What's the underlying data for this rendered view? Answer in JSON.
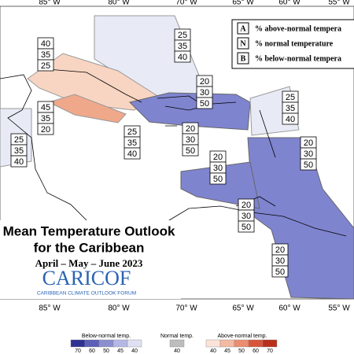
{
  "longitude_labels": [
    "85° W",
    "80° W",
    "70° W",
    "65° W",
    "60° W",
    "55° W"
  ],
  "legend": {
    "rows": [
      {
        "key": "A",
        "text": "% above-normal tempera"
      },
      {
        "key": "N",
        "text": "% normal temperature"
      },
      {
        "key": "B",
        "text": "% below-normal tempera"
      }
    ]
  },
  "outlook_boxes": [
    [
      40,
      35,
      25
    ],
    [
      25,
      35,
      40
    ],
    [
      45,
      35,
      20
    ],
    [
      25,
      35,
      40
    ],
    [
      25,
      35,
      40
    ],
    [
      20,
      30,
      50
    ],
    [
      20,
      30,
      50
    ],
    [
      25,
      35,
      40
    ],
    [
      20,
      30,
      50
    ],
    [
      20,
      30,
      50
    ],
    [
      20,
      30,
      50
    ],
    [
      20,
      30,
      50
    ]
  ],
  "title": {
    "line1": "Mean Temperature Outlook",
    "line2": "for the Caribbean",
    "period": "April – May – June 2023",
    "logo": "CARICOF",
    "logo_subtitle": "CARIBBEAN CLIMATE OUTLOOK FORUM"
  },
  "colorbar": {
    "below": {
      "label": "Below-normal temp.",
      "ticks": [
        70,
        60,
        50,
        45,
        40
      ]
    },
    "normal": {
      "label": "Normal temp.",
      "ticks": [
        40
      ]
    },
    "above": {
      "label": "Above-normal temp.",
      "ticks": [
        40,
        45,
        50,
        60,
        70
      ]
    }
  }
}
